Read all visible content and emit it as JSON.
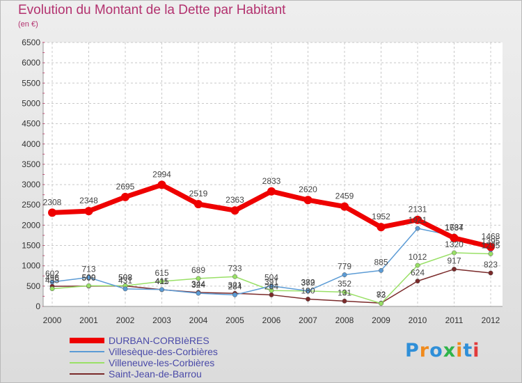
{
  "title": "Evolution du Montant de la Dette par Habitant",
  "subtitle": "(en €)",
  "logo_text": "Proxiti",
  "chart_data": {
    "type": "line",
    "title": "Evolution du Montant de la Dette par Habitant",
    "subtitle": "(en €)",
    "categories": [
      "2000",
      "2001",
      "2002",
      "2003",
      "2004",
      "2005",
      "2006",
      "2007",
      "2008",
      "2009",
      "2010",
      "2011",
      "2012"
    ],
    "ylim": [
      0,
      6500
    ],
    "yticks": [
      0,
      500,
      1000,
      1500,
      2000,
      2500,
      3000,
      3500,
      4000,
      4500,
      5000,
      5500,
      6000,
      6500
    ],
    "grid": true,
    "legend_position": "bottom-left",
    "series": [
      {
        "name": "DURBAN-CORBIèRES",
        "color": "#ee0000",
        "values": [
          2308,
          2348,
          2695,
          2994,
          2519,
          2363,
          2833,
          2620,
          2459,
          1952,
          2131,
          1684,
          1468
        ]
      },
      {
        "name": "Villesèque-des-Corbières",
        "color": "#5b9bd5",
        "values": [
          602,
          713,
          431,
          415,
          324,
          284,
          504,
          382,
          779,
          885,
          1921,
          1737,
          1395
        ]
      },
      {
        "name": "Villeneuve-les-Corbières",
        "color": "#99e066",
        "values": [
          435,
          509,
          508,
          615,
          689,
          733,
          391,
          379,
          352,
          73,
          1012,
          1320,
          1295
        ]
      },
      {
        "name": "Saint-Jean-de-Barrou",
        "color": "#7a2a2a",
        "values": [
          496,
          500,
          503,
          411,
          344,
          321,
          284,
          180,
          131,
          82,
          624,
          917,
          823
        ]
      }
    ]
  }
}
